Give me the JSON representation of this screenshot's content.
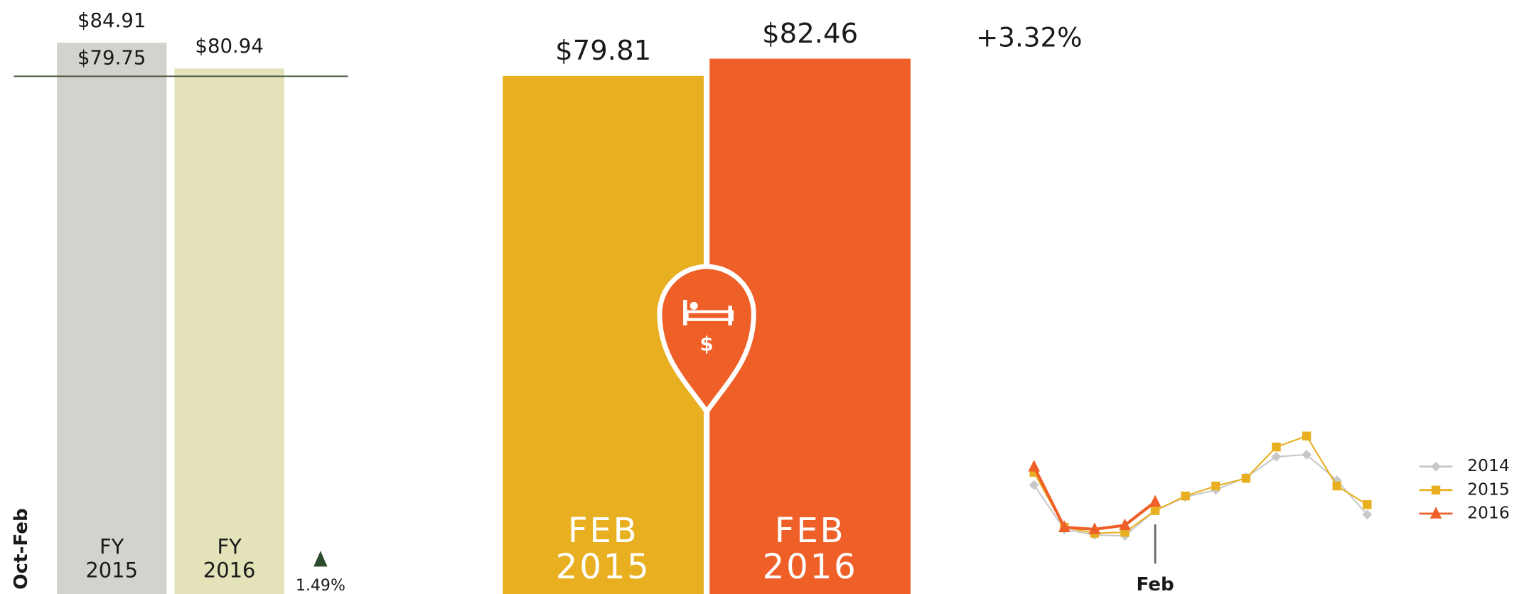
{
  "chart_data": [
    {
      "type": "bar",
      "ylabel": "Oct-Feb",
      "categories": [
        "FY 2015",
        "FY 2016"
      ],
      "values": [
        84.91,
        80.94
      ],
      "value_labels": [
        "$84.91",
        "$80.94"
      ],
      "colors": [
        "#d3d2cc",
        "#e3e2b8"
      ],
      "ylim": [
        0,
        91.5
      ],
      "reference": {
        "value": 79.75,
        "label": "$79.75"
      },
      "change": "1.49%"
    },
    {
      "type": "bar",
      "categories": [
        "FEB 2015",
        "FEB 2016"
      ],
      "values": [
        79.81,
        82.46
      ],
      "value_labels": [
        "$79.81",
        "$82.46"
      ],
      "colors": [
        "#e8b020",
        "#ee6028"
      ],
      "ylim": [
        0,
        91.5
      ],
      "change": "+3.32%"
    },
    {
      "type": "line",
      "categories": [
        null,
        null,
        null,
        null,
        "Feb",
        null,
        null,
        null,
        null,
        null,
        null,
        null
      ],
      "ylim": [
        68.3,
        115.4
      ],
      "legend": "right",
      "series": [
        {
          "name": "2014",
          "color": "#c8c8c8",
          "marker": "diamond",
          "values": [
            87.5,
            74.2,
            72.5,
            72.2,
            79.8,
            83.9,
            86.0,
            89.8,
            96.0,
            96.6,
            88.9,
            78.6
          ]
        },
        {
          "name": "2015",
          "color": "#e8b020",
          "marker": "square",
          "values": [
            91.3,
            74.8,
            73.0,
            73.3,
            79.81,
            84.2,
            87.2,
            89.5,
            98.9,
            102.2,
            87.2,
            81.6
          ]
        },
        {
          "name": "2016",
          "color": "#ee6028",
          "marker": "triangle",
          "values": [
            93.0,
            74.8,
            74.2,
            75.4,
            82.46,
            null,
            null,
            null,
            null,
            null,
            null,
            null
          ]
        }
      ]
    }
  ]
}
